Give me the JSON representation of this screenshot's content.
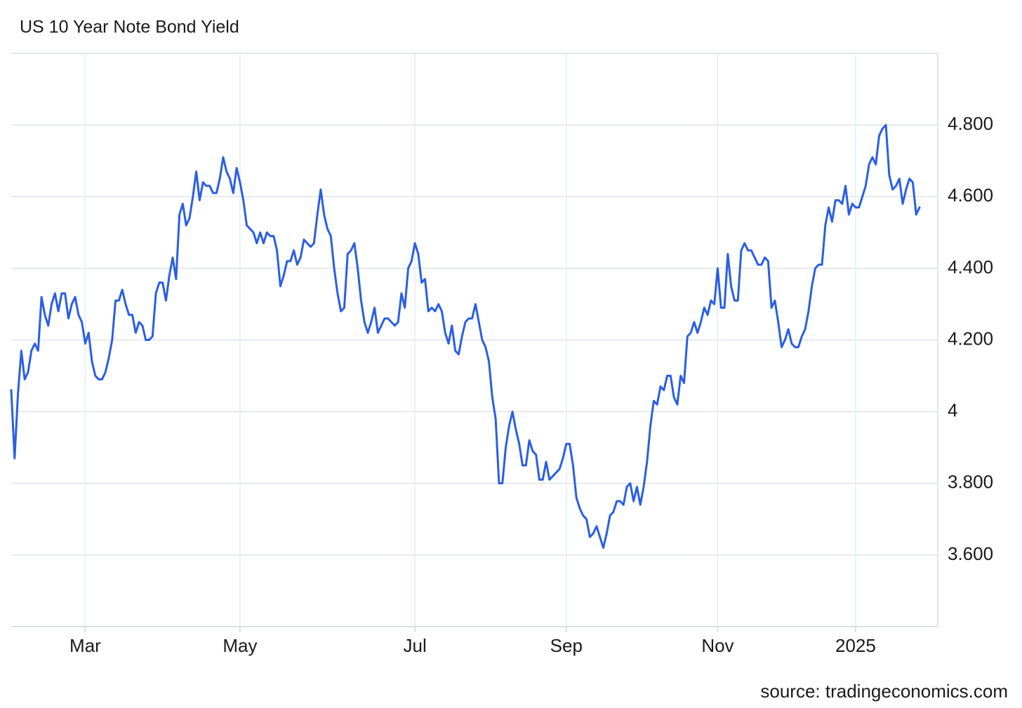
{
  "chart_data": {
    "type": "line",
    "title": "US 10 Year Note Bond Yield",
    "source": "source: tradingeconomics.com",
    "color": "#2a5ee8",
    "grid": true,
    "ylim": [
      3.4,
      5.0
    ],
    "yticks": [
      {
        "value": 3.6,
        "label": "3.600"
      },
      {
        "value": 3.8,
        "label": "3.800"
      },
      4,
      {
        "value": 4.2,
        "label": "4.200"
      },
      {
        "value": 4.4,
        "label": "4.400"
      },
      {
        "value": 4.6,
        "label": "4.600"
      },
      {
        "value": 4.8,
        "label": "4.800"
      }
    ],
    "categories": [
      null,
      null,
      null,
      null,
      null,
      null,
      null,
      null,
      null,
      null,
      null,
      null,
      null,
      null,
      null,
      null,
      null,
      null,
      null,
      null,
      null,
      null,
      "Mar",
      null,
      null,
      null,
      null,
      null,
      null,
      null,
      null,
      null,
      null,
      null,
      null,
      null,
      null,
      null,
      null,
      null,
      null,
      null,
      null,
      null,
      null,
      null,
      null,
      null,
      null,
      null,
      null,
      null,
      null,
      null,
      null,
      null,
      null,
      null,
      null,
      null,
      null,
      null,
      null,
      null,
      null,
      null,
      null,
      null,
      "May",
      null,
      null,
      null,
      null,
      null,
      null,
      null,
      null,
      null,
      null,
      null,
      null,
      null,
      null,
      null,
      null,
      null,
      null,
      null,
      null,
      null,
      null,
      null,
      null,
      null,
      null,
      null,
      null,
      null,
      null,
      null,
      null,
      null,
      null,
      null,
      null,
      null,
      null,
      null,
      null,
      null,
      null,
      null,
      null,
      null,
      null,
      null,
      null,
      null,
      null,
      null,
      "Jul",
      null,
      null,
      null,
      null,
      null,
      null,
      null,
      null,
      null,
      null,
      null,
      null,
      null,
      null,
      null,
      null,
      null,
      null,
      null,
      null,
      null,
      null,
      null,
      null,
      null,
      null,
      null,
      null,
      null,
      null,
      null,
      null,
      null,
      null,
      null,
      null,
      null,
      null,
      null,
      null,
      null,
      null,
      null,
      null,
      "Sep",
      null,
      null,
      null,
      null,
      null,
      null,
      null,
      null,
      null,
      null,
      null,
      null,
      null,
      null,
      null,
      null,
      null,
      null,
      null,
      null,
      null,
      null,
      null,
      null,
      null,
      null,
      null,
      null,
      null,
      null,
      null,
      null,
      null,
      null,
      null,
      null,
      null,
      null,
      null,
      null,
      null,
      null,
      null,
      null,
      "Nov",
      null,
      null,
      null,
      null,
      null,
      null,
      null,
      null,
      null,
      null,
      null,
      null,
      null,
      null,
      null,
      null,
      null,
      null,
      null,
      null,
      null,
      null,
      null,
      null,
      null,
      null,
      null,
      null,
      null,
      null,
      null,
      null,
      null,
      null,
      null,
      null,
      null,
      null,
      null,
      null,
      "2025",
      null,
      null,
      null,
      null,
      null,
      null,
      null,
      null,
      null,
      null,
      null,
      null,
      null,
      null,
      null,
      null,
      null,
      null,
      null
    ],
    "values": [
      4.06,
      3.87,
      4.05,
      4.17,
      4.09,
      4.11,
      4.17,
      4.19,
      4.17,
      4.32,
      4.27,
      4.24,
      4.3,
      4.33,
      4.28,
      4.33,
      4.33,
      4.26,
      4.3,
      4.32,
      4.27,
      4.25,
      4.19,
      4.22,
      4.14,
      4.1,
      4.09,
      4.09,
      4.11,
      4.15,
      4.2,
      4.31,
      4.31,
      4.34,
      4.3,
      4.27,
      4.27,
      4.22,
      4.25,
      4.24,
      4.2,
      4.2,
      4.21,
      4.33,
      4.36,
      4.36,
      4.31,
      4.38,
      4.43,
      4.37,
      4.55,
      4.58,
      4.52,
      4.54,
      4.6,
      4.67,
      4.59,
      4.64,
      4.63,
      4.63,
      4.61,
      4.61,
      4.65,
      4.71,
      4.67,
      4.65,
      4.61,
      4.68,
      4.64,
      4.59,
      4.52,
      4.51,
      4.5,
      4.47,
      4.5,
      4.47,
      4.5,
      4.49,
      4.49,
      4.45,
      4.35,
      4.38,
      4.42,
      4.42,
      4.45,
      4.41,
      4.43,
      4.48,
      4.47,
      4.46,
      4.47,
      4.55,
      4.62,
      4.55,
      4.51,
      4.49,
      4.4,
      4.33,
      4.28,
      4.29,
      4.44,
      4.45,
      4.47,
      4.4,
      4.31,
      4.25,
      4.22,
      4.25,
      4.29,
      4.22,
      4.24,
      4.26,
      4.26,
      4.25,
      4.24,
      4.25,
      4.33,
      4.29,
      4.4,
      4.42,
      4.47,
      4.44,
      4.36,
      4.37,
      4.28,
      4.29,
      4.28,
      4.3,
      4.28,
      4.22,
      4.19,
      4.24,
      4.17,
      4.16,
      4.21,
      4.25,
      4.26,
      4.26,
      4.3,
      4.25,
      4.2,
      4.18,
      4.14,
      4.04,
      3.98,
      3.8,
      3.8,
      3.9,
      3.96,
      4.0,
      3.95,
      3.91,
      3.85,
      3.85,
      3.92,
      3.89,
      3.88,
      3.81,
      3.81,
      3.86,
      3.81,
      3.82,
      3.83,
      3.84,
      3.87,
      3.91,
      3.91,
      3.85,
      3.76,
      3.73,
      3.71,
      3.7,
      3.65,
      3.66,
      3.68,
      3.65,
      3.62,
      3.66,
      3.71,
      3.72,
      3.75,
      3.75,
      3.74,
      3.79,
      3.8,
      3.75,
      3.79,
      3.74,
      3.79,
      3.86,
      3.96,
      4.03,
      4.02,
      4.07,
      4.06,
      4.1,
      4.1,
      4.04,
      4.02,
      4.1,
      4.08,
      4.21,
      4.22,
      4.25,
      4.22,
      4.25,
      4.29,
      4.27,
      4.31,
      4.3,
      4.4,
      4.29,
      4.29,
      4.44,
      4.35,
      4.31,
      4.31,
      4.45,
      4.47,
      4.45,
      4.45,
      4.43,
      4.41,
      4.41,
      4.43,
      4.42,
      4.29,
      4.31,
      4.25,
      4.18,
      4.2,
      4.23,
      4.19,
      4.18,
      4.18,
      4.21,
      4.23,
      4.28,
      4.35,
      4.4,
      4.41,
      4.41,
      4.52,
      4.57,
      4.53,
      4.59,
      4.59,
      4.58,
      4.63,
      4.55,
      4.58,
      4.57,
      4.57,
      4.6,
      4.63,
      4.69,
      4.71,
      4.69,
      4.77,
      4.79,
      4.8,
      4.66,
      4.62,
      4.63,
      4.65,
      4.58,
      4.62,
      4.65,
      4.64,
      4.55,
      4.57
    ]
  }
}
